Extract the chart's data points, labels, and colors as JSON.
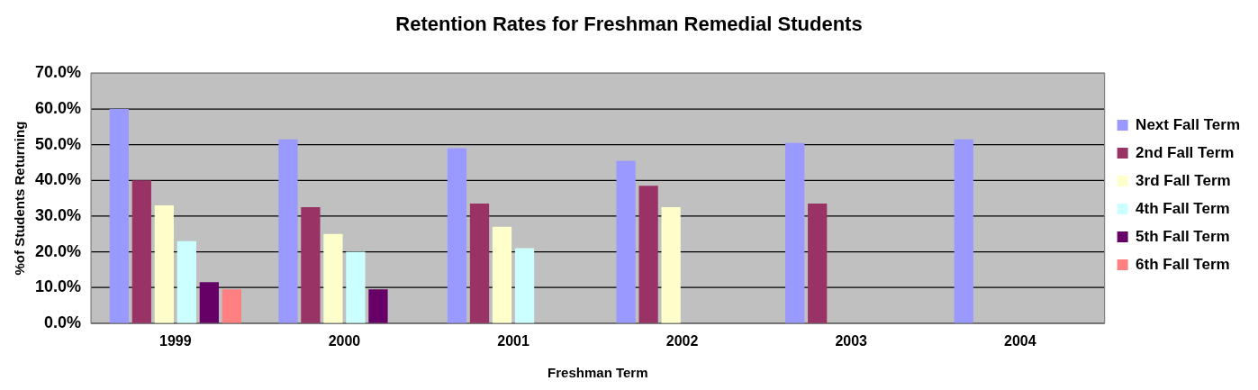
{
  "chart_data": {
    "type": "bar",
    "title": "Retention Rates for Freshman Remedial Students",
    "xlabel": "Freshman Term",
    "ylabel": "%of Students Returning",
    "categories": [
      "1999",
      "2000",
      "2001",
      "2002",
      "2003",
      "2004"
    ],
    "series": [
      {
        "name": "Next Fall Term",
        "color": "#9999ff",
        "values": [
          60,
          51.5,
          49,
          45.5,
          50.5,
          51.5
        ]
      },
      {
        "name": "2nd Fall Term",
        "color": "#993366",
        "values": [
          40,
          32.5,
          33.5,
          38.5,
          33.5,
          null
        ]
      },
      {
        "name": "3rd Fall Term",
        "color": "#ffffcc",
        "values": [
          33,
          25,
          27,
          32.5,
          null,
          null
        ]
      },
      {
        "name": "4th Fall Term",
        "color": "#ccffff",
        "values": [
          23,
          20,
          21,
          null,
          null,
          null
        ]
      },
      {
        "name": "5th Fall Term",
        "color": "#660066",
        "values": [
          11.5,
          9.5,
          null,
          null,
          null,
          null
        ]
      },
      {
        "name": "6th Fall Term",
        "color": "#ff8080",
        "values": [
          9.5,
          null,
          null,
          null,
          null,
          null
        ]
      }
    ],
    "ylim": [
      0,
      70
    ],
    "yticks": [
      {
        "value": 0,
        "label": "0.0%"
      },
      {
        "value": 10,
        "label": "10.0%"
      },
      {
        "value": 20,
        "label": "20.0%"
      },
      {
        "value": 30,
        "label": "30.0%"
      },
      {
        "value": 40,
        "label": "40.0%"
      },
      {
        "value": 50,
        "label": "50.0%"
      },
      {
        "value": 60,
        "label": "60.0%"
      },
      {
        "value": 70,
        "label": "70.0%"
      }
    ],
    "grid": "y",
    "legend": "right"
  }
}
